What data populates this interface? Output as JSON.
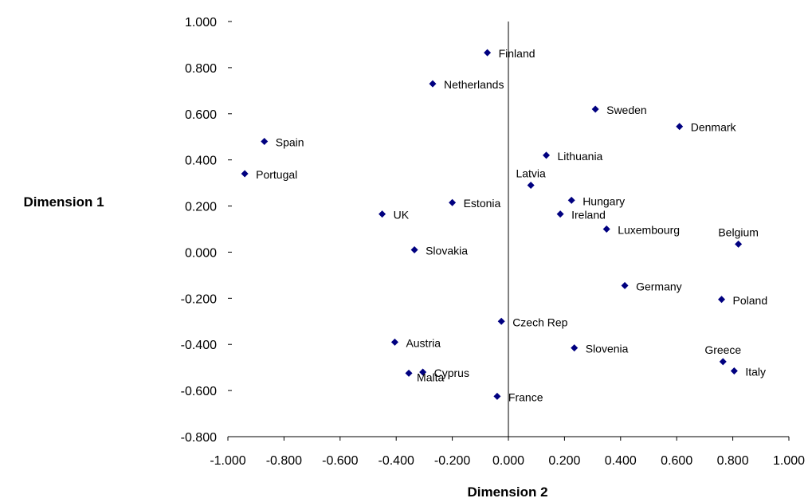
{
  "chart_data": {
    "type": "scatter",
    "title": "",
    "xlabel": "Dimension 2",
    "ylabel": "Dimension 1",
    "xlim": [
      -1.0,
      1.0
    ],
    "ylim": [
      -0.8,
      1.0
    ],
    "x_ticks": [
      "-1.000",
      "-0.800",
      "-0.600",
      "-0.400",
      "-0.200",
      "0.000",
      "0.200",
      "0.400",
      "0.600",
      "0.800",
      "1.000"
    ],
    "y_ticks": [
      "1.000",
      "0.800",
      "0.600",
      "0.400",
      "0.200",
      "0.000",
      "-0.200",
      "-0.400",
      "-0.600",
      "-0.800"
    ],
    "grid": false,
    "marker": "diamond",
    "marker_color": "#000080",
    "points": [
      {
        "label": "Finland",
        "x": -0.075,
        "y": 0.865
      },
      {
        "label": "Netherlands",
        "x": -0.27,
        "y": 0.73
      },
      {
        "label": "Sweden",
        "x": 0.31,
        "y": 0.62
      },
      {
        "label": "Denmark",
        "x": 0.61,
        "y": 0.545
      },
      {
        "label": "Spain",
        "x": -0.87,
        "y": 0.48
      },
      {
        "label": "Lithuania",
        "x": 0.135,
        "y": 0.42
      },
      {
        "label": "Portugal",
        "x": -0.94,
        "y": 0.34
      },
      {
        "label": "Latvia",
        "x": 0.08,
        "y": 0.29
      },
      {
        "label": "Hungary",
        "x": 0.225,
        "y": 0.225
      },
      {
        "label": "Estonia",
        "x": -0.2,
        "y": 0.215
      },
      {
        "label": "UK",
        "x": -0.45,
        "y": 0.165
      },
      {
        "label": "Ireland",
        "x": 0.185,
        "y": 0.165
      },
      {
        "label": "Luxembourg",
        "x": 0.35,
        "y": 0.1
      },
      {
        "label": "Belgium",
        "x": 0.82,
        "y": 0.035
      },
      {
        "label": "Slovakia",
        "x": -0.335,
        "y": 0.01
      },
      {
        "label": "Germany",
        "x": 0.415,
        "y": -0.145
      },
      {
        "label": "Poland",
        "x": 0.76,
        "y": -0.205
      },
      {
        "label": "Czech Rep",
        "x": -0.025,
        "y": -0.3
      },
      {
        "label": "Austria",
        "x": -0.405,
        "y": -0.39
      },
      {
        "label": "Slovenia",
        "x": 0.235,
        "y": -0.415
      },
      {
        "label": "Greece",
        "x": 0.765,
        "y": -0.475
      },
      {
        "label": "Italy",
        "x": 0.805,
        "y": -0.515
      },
      {
        "label": "Cyprus",
        "x": -0.305,
        "y": -0.52
      },
      {
        "label": "Malta",
        "x": -0.355,
        "y": -0.525
      },
      {
        "label": "France",
        "x": -0.04,
        "y": -0.625
      }
    ]
  }
}
